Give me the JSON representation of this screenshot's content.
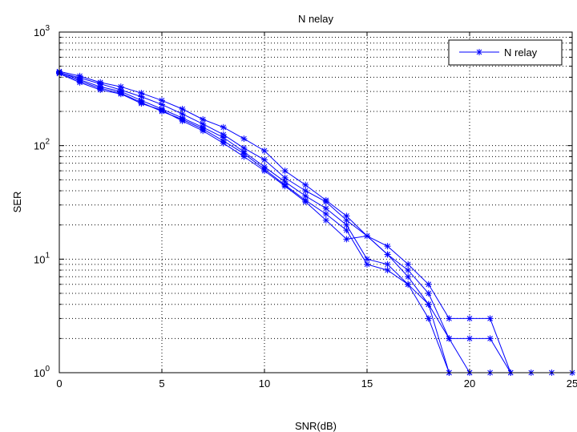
{
  "chart_data": {
    "type": "line",
    "title": "N  nelay",
    "xlabel": "SNR(dB)",
    "ylabel": "SER",
    "xlim": [
      0,
      25
    ],
    "ylim": [
      1,
      1000
    ],
    "yscale": "log",
    "grid": true,
    "grid_style": "dotted",
    "legend": {
      "placement": "top-right",
      "entries": [
        "N relay"
      ]
    },
    "line_color": "#0000ff",
    "marker": "asterisk",
    "x_tick_labels": [
      "0",
      "5",
      "10",
      "15",
      "20",
      "25"
    ],
    "y_tick_labels": [
      {
        "base": "10",
        "exp": "0"
      },
      {
        "base": "10",
        "exp": "1"
      },
      {
        "base": "10",
        "exp": "2"
      },
      {
        "base": "10",
        "exp": "3"
      }
    ],
    "series": [
      {
        "name": "N relay",
        "x": [
          0,
          1,
          2,
          3,
          4,
          5,
          6,
          7,
          8,
          9,
          10,
          11,
          12,
          13,
          14,
          15,
          16,
          17,
          18,
          19,
          20,
          21,
          22
        ],
        "values": [
          450,
          410,
          360,
          330,
          290,
          250,
          210,
          170,
          145,
          115,
          90,
          60,
          45,
          33,
          24,
          16,
          13,
          9,
          6,
          3,
          3,
          3,
          1
        ]
      },
      {
        "x": [
          0,
          1,
          2,
          3,
          4,
          5,
          6,
          7,
          8,
          9,
          10,
          11,
          12,
          13,
          14,
          15,
          16,
          17,
          18,
          19,
          20,
          21,
          22,
          23,
          24,
          25
        ],
        "values": [
          440,
          395,
          350,
          310,
          270,
          230,
          190,
          155,
          125,
          95,
          75,
          52,
          40,
          32,
          22,
          16,
          11,
          8,
          5,
          2,
          2,
          2,
          1,
          1,
          1,
          1
        ]
      },
      {
        "x": [
          0,
          1,
          2,
          3,
          4,
          5,
          6,
          7,
          8,
          9,
          10,
          11,
          12,
          13,
          14,
          15,
          16,
          17,
          18,
          19,
          20
        ],
        "values": [
          445,
          380,
          330,
          300,
          250,
          210,
          175,
          145,
          118,
          88,
          65,
          48,
          36,
          28,
          20,
          10,
          9,
          6,
          4,
          1,
          1
        ]
      },
      {
        "x": [
          0,
          1,
          2,
          3,
          4,
          5,
          6,
          7,
          8,
          9,
          10,
          11,
          12,
          13,
          14,
          15,
          16,
          17,
          18,
          19
        ],
        "values": [
          435,
          370,
          320,
          290,
          240,
          200,
          170,
          140,
          110,
          85,
          62,
          45,
          33,
          25,
          18,
          9,
          8,
          6,
          3,
          1
        ]
      },
      {
        "x": [
          0,
          1,
          2,
          3,
          4,
          5,
          6,
          7,
          8,
          9,
          10,
          11,
          12,
          13,
          14,
          15,
          16,
          17,
          18,
          19,
          20,
          21
        ],
        "values": [
          430,
          360,
          310,
          285,
          235,
          205,
          165,
          135,
          105,
          80,
          60,
          44,
          32,
          22,
          15,
          16,
          11,
          7,
          4,
          2,
          1,
          1
        ]
      }
    ]
  }
}
